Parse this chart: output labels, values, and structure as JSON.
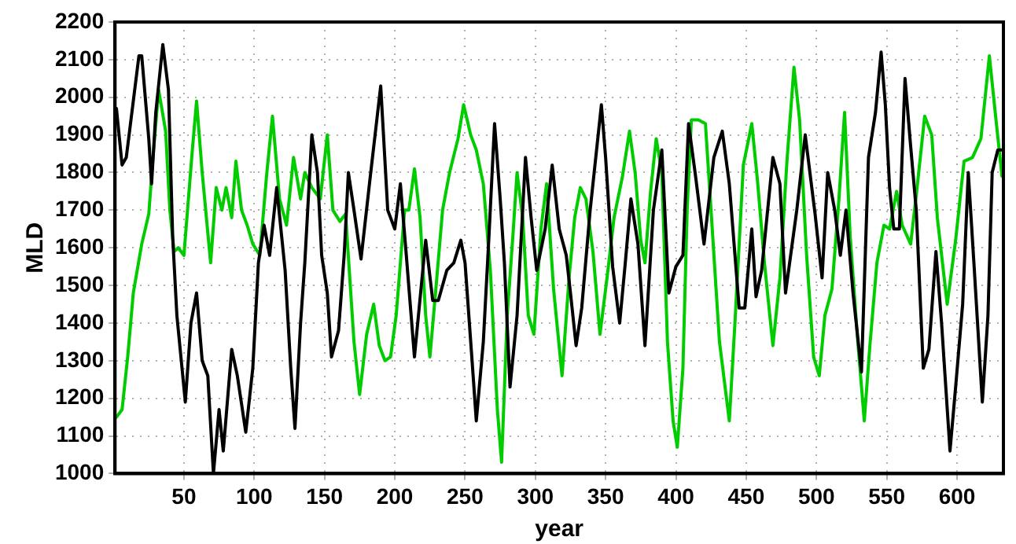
{
  "chart_data": {
    "type": "line",
    "xlabel": "year",
    "ylabel": "MLD",
    "xlim": [
      1,
      633
    ],
    "ylim": [
      1000,
      2200
    ],
    "xticks": [
      50,
      100,
      150,
      200,
      250,
      300,
      350,
      400,
      450,
      500,
      550,
      600
    ],
    "yticks": [
      1000,
      1100,
      1200,
      1300,
      1400,
      1500,
      1600,
      1700,
      1800,
      1900,
      2000,
      2100,
      2200
    ],
    "grid": true,
    "marker": "none",
    "line_style": "solid",
    "series": [
      {
        "color": "#000000",
        "x": [
          2,
          6,
          9,
          12,
          18,
          20,
          25,
          27,
          30,
          35,
          39,
          42,
          45,
          51,
          55,
          59,
          63,
          67,
          71,
          75,
          78,
          84,
          88,
          94,
          99,
          103,
          107,
          111,
          116,
          122,
          126,
          129,
          133,
          136,
          141,
          145,
          148,
          152,
          155,
          160,
          164,
          167,
          171,
          176,
          182,
          190,
          195,
          200,
          204,
          208,
          214,
          222,
          227,
          231,
          237,
          242,
          247,
          250,
          255,
          258,
          263,
          267,
          271,
          275,
          278,
          282,
          287,
          293,
          297,
          301,
          307,
          312,
          317,
          322,
          325,
          329,
          333,
          339,
          343,
          347,
          350,
          355,
          360,
          364,
          368,
          373,
          378,
          384,
          390,
          395,
          400,
          405,
          409,
          414,
          420,
          427,
          433,
          438,
          445,
          449,
          454,
          457,
          461,
          469,
          474,
          478,
          486,
          492,
          499,
          504,
          508,
          513,
          517,
          521,
          526,
          532,
          537,
          542,
          546,
          549,
          552,
          555,
          559,
          563,
          567,
          571,
          576,
          580,
          585,
          589,
          595,
          599,
          604,
          608,
          612,
          618,
          622,
          625,
          629,
          632
        ],
        "values": [
          1970,
          1820,
          1840,
          1930,
          2110,
          2110,
          1890,
          1770,
          1960,
          2140,
          2020,
          1630,
          1420,
          1190,
          1400,
          1480,
          1300,
          1260,
          1000,
          1170,
          1060,
          1330,
          1260,
          1110,
          1280,
          1560,
          1660,
          1580,
          1760,
          1540,
          1280,
          1120,
          1400,
          1560,
          1900,
          1800,
          1580,
          1480,
          1310,
          1380,
          1580,
          1800,
          1700,
          1570,
          1770,
          2030,
          1700,
          1650,
          1770,
          1590,
          1310,
          1620,
          1460,
          1460,
          1540,
          1560,
          1620,
          1560,
          1300,
          1140,
          1350,
          1630,
          1930,
          1730,
          1560,
          1230,
          1420,
          1840,
          1680,
          1540,
          1650,
          1820,
          1650,
          1580,
          1480,
          1340,
          1440,
          1700,
          1840,
          1980,
          1840,
          1550,
          1400,
          1560,
          1730,
          1610,
          1340,
          1700,
          1860,
          1480,
          1550,
          1580,
          1930,
          1790,
          1610,
          1840,
          1910,
          1770,
          1440,
          1440,
          1650,
          1470,
          1540,
          1840,
          1770,
          1480,
          1700,
          1900,
          1690,
          1520,
          1800,
          1700,
          1580,
          1700,
          1480,
          1270,
          1840,
          1960,
          2120,
          1980,
          1760,
          1650,
          1650,
          2050,
          1870,
          1700,
          1280,
          1330,
          1590,
          1400,
          1060,
          1230,
          1450,
          1800,
          1560,
          1190,
          1420,
          1800,
          1860,
          1860
        ]
      },
      {
        "color": "#00cc00",
        "x": [
          2,
          6,
          10,
          14,
          20,
          25,
          28,
          32,
          37,
          40,
          43,
          46,
          50,
          56,
          59,
          63,
          69,
          73,
          77,
          80,
          84,
          87,
          91,
          95,
          99,
          104,
          109,
          113,
          118,
          123,
          128,
          133,
          136,
          141,
          147,
          152,
          156,
          161,
          165,
          171,
          175,
          180,
          185,
          189,
          193,
          197,
          201,
          207,
          210,
          214,
          218,
          222,
          225,
          229,
          234,
          239,
          245,
          249,
          254,
          258,
          263,
          268,
          273,
          276,
          280,
          284,
          287,
          291,
          295,
          299,
          304,
          308,
          313,
          319,
          324,
          328,
          332,
          336,
          341,
          346,
          351,
          356,
          362,
          367,
          371,
          375,
          378,
          382,
          386,
          390,
          394,
          398,
          401,
          405,
          408,
          411,
          416,
          421,
          425,
          431,
          438,
          442,
          448,
          454,
          458,
          463,
          469,
          474,
          479,
          484,
          488,
          493,
          498,
          502,
          506,
          511,
          516,
          520,
          524,
          529,
          534,
          538,
          543,
          548,
          552,
          557,
          561,
          567,
          571,
          577,
          582,
          586,
          593,
          599,
          605,
          611,
          617,
          623,
          628,
          632
        ],
        "values": [
          1150,
          1170,
          1310,
          1480,
          1610,
          1690,
          1840,
          2020,
          1910,
          1700,
          1590,
          1600,
          1580,
          1860,
          1990,
          1800,
          1560,
          1760,
          1700,
          1760,
          1680,
          1830,
          1700,
          1660,
          1610,
          1580,
          1800,
          1950,
          1730,
          1660,
          1840,
          1730,
          1800,
          1760,
          1730,
          1900,
          1700,
          1670,
          1690,
          1350,
          1210,
          1370,
          1450,
          1340,
          1300,
          1310,
          1420,
          1700,
          1700,
          1810,
          1680,
          1420,
          1310,
          1480,
          1700,
          1800,
          1890,
          1980,
          1900,
          1860,
          1770,
          1540,
          1170,
          1030,
          1420,
          1630,
          1800,
          1680,
          1420,
          1370,
          1650,
          1770,
          1490,
          1260,
          1520,
          1680,
          1760,
          1730,
          1590,
          1370,
          1520,
          1680,
          1790,
          1910,
          1800,
          1620,
          1560,
          1750,
          1890,
          1800,
          1350,
          1140,
          1070,
          1280,
          1700,
          1940,
          1940,
          1930,
          1700,
          1350,
          1140,
          1400,
          1820,
          1930,
          1780,
          1560,
          1340,
          1520,
          1830,
          2080,
          1940,
          1580,
          1310,
          1260,
          1420,
          1490,
          1730,
          1960,
          1630,
          1370,
          1140,
          1340,
          1560,
          1660,
          1650,
          1750,
          1660,
          1610,
          1740,
          1950,
          1900,
          1680,
          1450,
          1620,
          1830,
          1840,
          1890,
          2110,
          1930,
          1790
        ]
      }
    ]
  }
}
